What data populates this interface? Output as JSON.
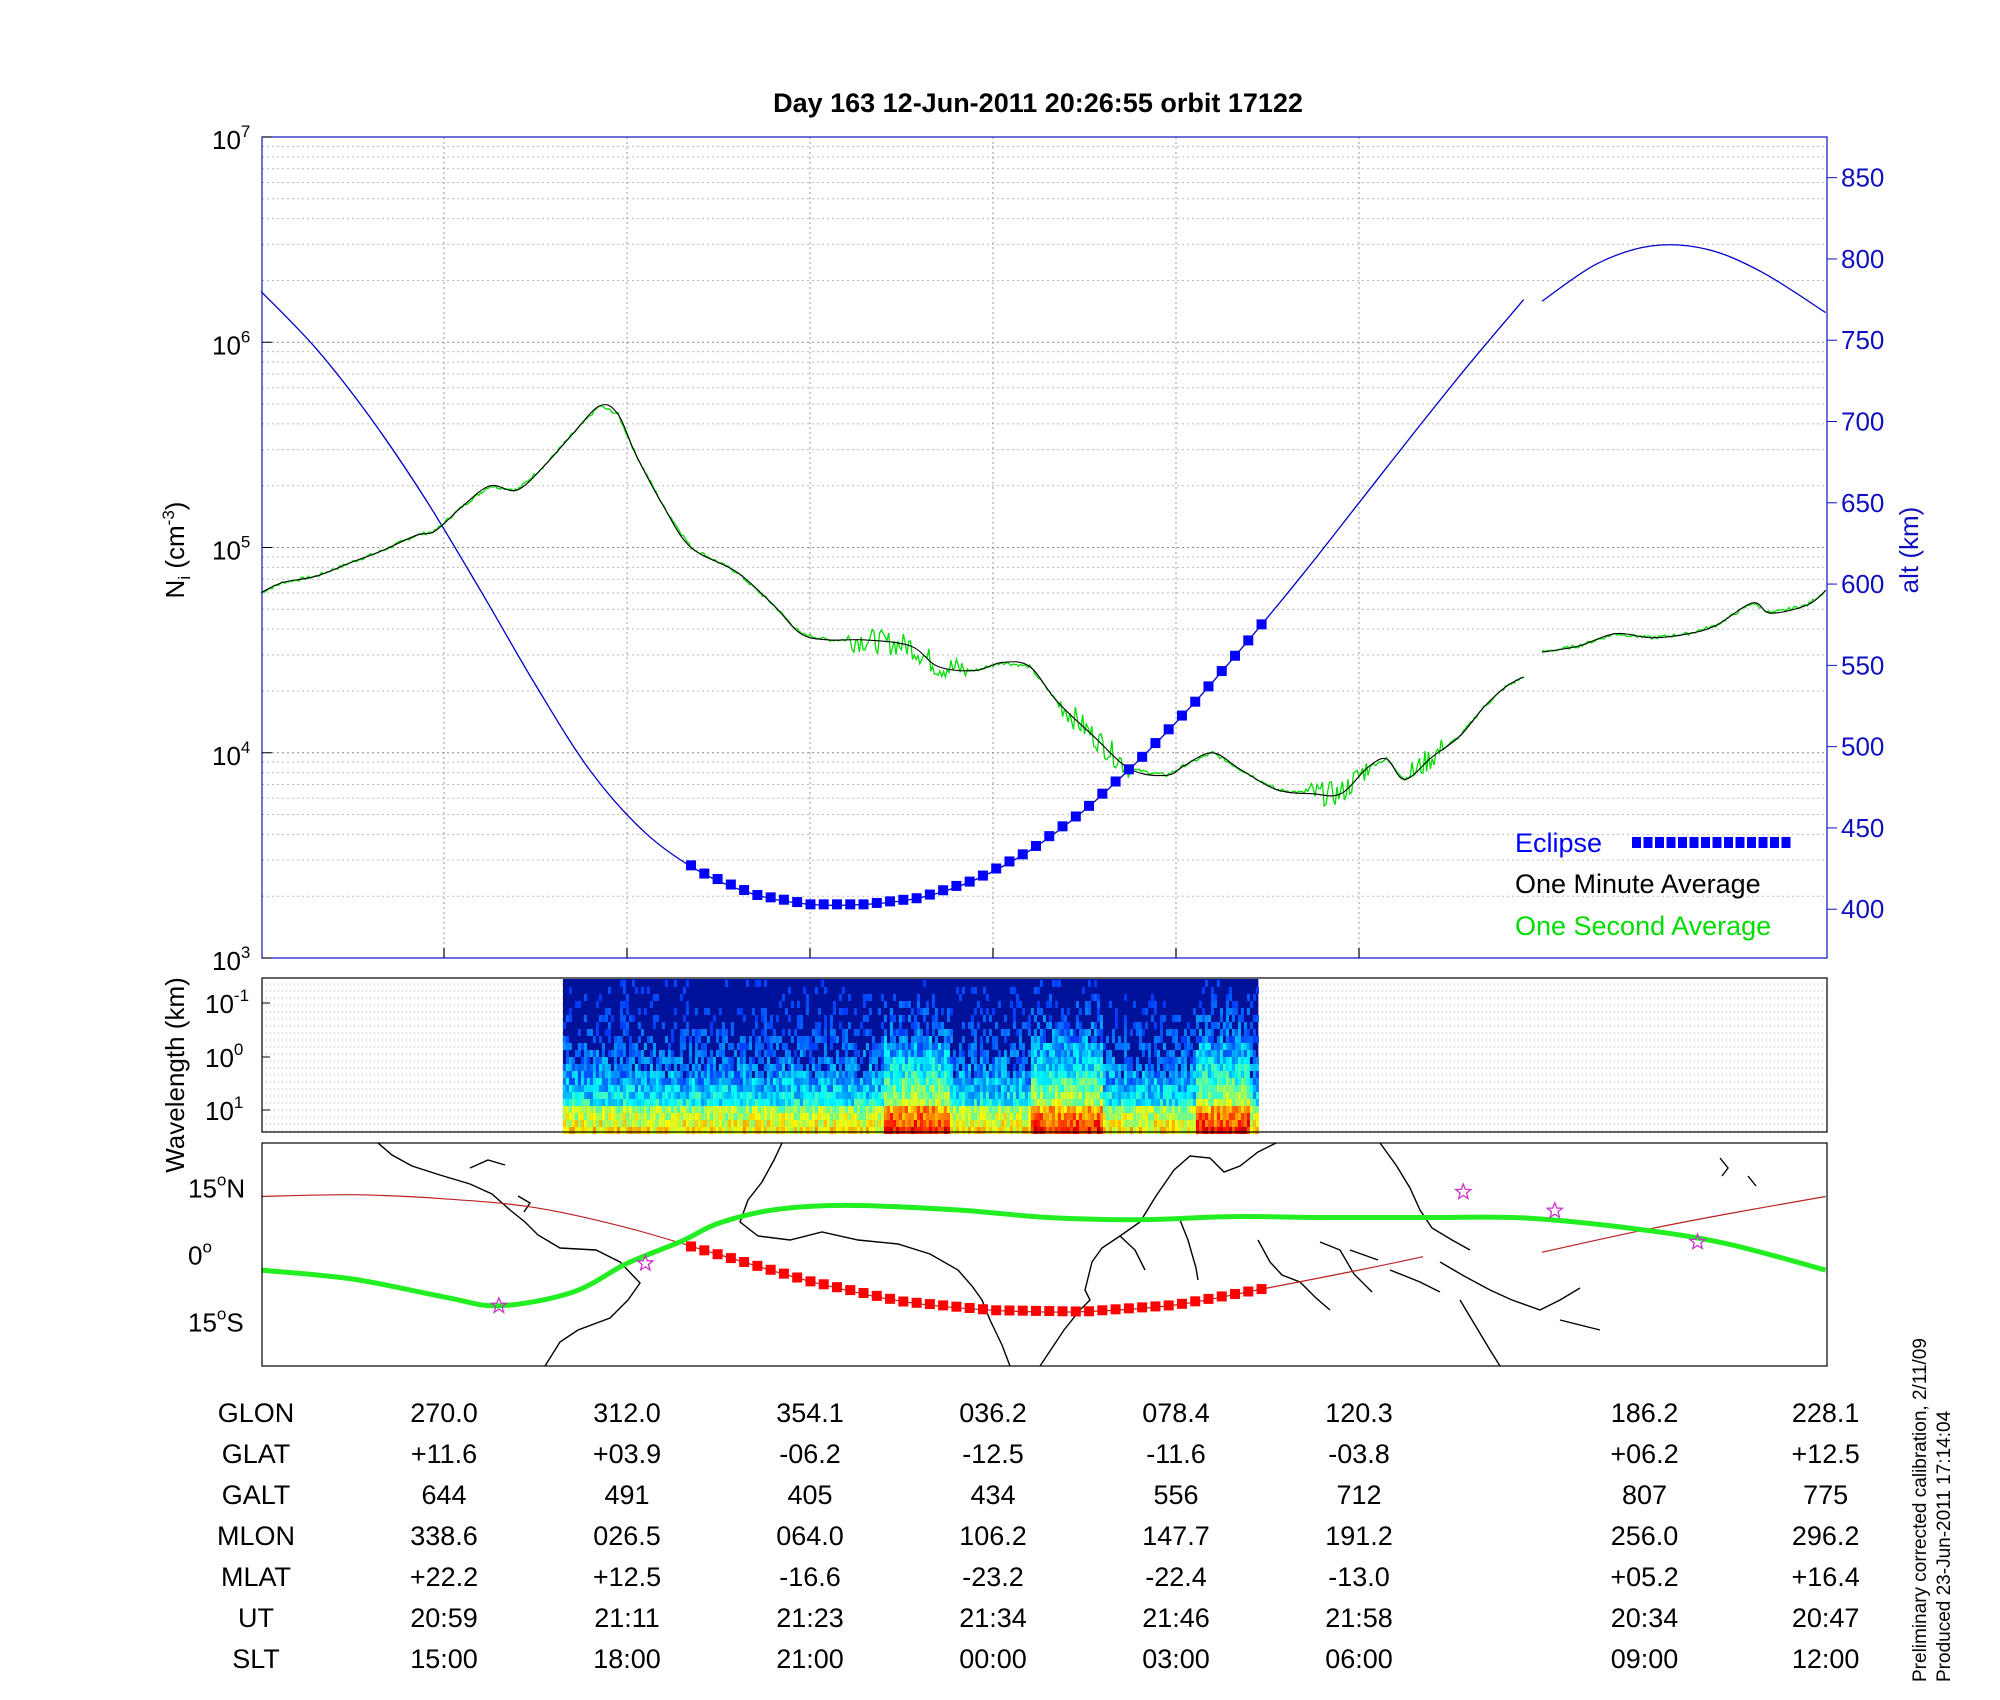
{
  "title": "Day 163  12-Jun-2011 20:26:55   orbit 17122",
  "colors": {
    "altitude": "#0000c8",
    "eclipse": "#0000ff",
    "minute_avg": "#000000",
    "second_avg": "#00dd00",
    "ground_track": "#bb2222",
    "magnetic_equator": "#22ee22",
    "eclipse_track": "#ff0000",
    "stars": "#cc33cc",
    "right_axis": "#1010c0"
  },
  "legend": {
    "eclipse": "Eclipse",
    "minute": "One Minute Average",
    "second": "One Second Average"
  },
  "table": {
    "labels": [
      "GLON",
      "GLAT",
      "GALT",
      "MLON",
      "MLAT",
      "UT",
      "SLT"
    ],
    "columns": [
      {
        "pos": 0,
        "GLON": "270.0",
        "GLAT": "+11.6",
        "GALT": "644",
        "MLON": "338.6",
        "MLAT": "+22.2",
        "UT": "20:59",
        "SLT": "15:00"
      },
      {
        "pos": 1,
        "GLON": "312.0",
        "GLAT": "+03.9",
        "GALT": "491",
        "MLON": "026.5",
        "MLAT": "+12.5",
        "UT": "21:11",
        "SLT": "18:00"
      },
      {
        "pos": 2,
        "GLON": "354.1",
        "GLAT": "-06.2",
        "GALT": "405",
        "MLON": "064.0",
        "MLAT": "-16.6",
        "UT": "21:23",
        "SLT": "21:00"
      },
      {
        "pos": 3,
        "GLON": "036.2",
        "GLAT": "-12.5",
        "GALT": "434",
        "MLON": "106.2",
        "MLAT": "-23.2",
        "UT": "21:34",
        "SLT": "00:00"
      },
      {
        "pos": 4,
        "GLON": "078.4",
        "GLAT": "-11.6",
        "GALT": "556",
        "MLON": "147.7",
        "MLAT": "-22.4",
        "UT": "21:46",
        "SLT": "03:00"
      },
      {
        "pos": 5,
        "GLON": "120.3",
        "GLAT": "-03.8",
        "GALT": "712",
        "MLON": "191.2",
        "MLAT": "-13.0",
        "UT": "21:58",
        "SLT": "06:00"
      },
      {
        "pos": 6.56,
        "GLON": "186.2",
        "GLAT": "+06.2",
        "GALT": "807",
        "MLON": "256.0",
        "MLAT": "+05.2",
        "UT": "20:34",
        "SLT": "09:00"
      },
      {
        "pos": 7.55,
        "GLON": "228.1",
        "GLAT": "+12.5",
        "GALT": "775",
        "MLON": "296.2",
        "MLAT": "+16.4",
        "UT": "20:47",
        "SLT": "12:00"
      }
    ]
  },
  "footer": {
    "line1": "Preliminary corrected calibration, 2/11/09",
    "line2": "Produced 23-Jun-2011 17:14:04"
  },
  "chart_data": [
    {
      "id": "density",
      "type": "line",
      "xlim": [
        -1,
        7.55
      ],
      "ylim_log10": [
        3,
        7
      ],
      "ylabel_main": "N",
      "ylabel_sub": "i",
      "ylabel_unit": " (cm",
      "ylabel_exp": "-3",
      "ylabel_close": ")",
      "y_ticks": [
        {
          "base": "10",
          "exp": "3",
          "v": 3
        },
        {
          "base": "10",
          "exp": "4",
          "v": 4
        },
        {
          "base": "10",
          "exp": "5",
          "v": 5
        },
        {
          "base": "10",
          "exp": "6",
          "v": 6
        },
        {
          "base": "10",
          "exp": "7",
          "v": 7
        }
      ],
      "right_axis": {
        "label": "alt (km)",
        "lim": [
          370,
          875
        ],
        "ticks": [
          "400",
          "450",
          "500",
          "550",
          "600",
          "650",
          "700",
          "750",
          "800",
          "850"
        ]
      },
      "series": [
        {
          "name": "One Minute Average",
          "log10": [
            [
              -1.0,
              4.78
            ],
            [
              -0.88,
              4.83
            ],
            [
              -0.7,
              4.86
            ],
            [
              -0.5,
              4.93
            ],
            [
              -0.35,
              4.98
            ],
            [
              -0.15,
              5.06
            ],
            [
              -0.05,
              5.08
            ],
            [
              0.1,
              5.2
            ],
            [
              0.25,
              5.3
            ],
            [
              0.4,
              5.28
            ],
            [
              0.55,
              5.4
            ],
            [
              0.7,
              5.55
            ],
            [
              0.85,
              5.69
            ],
            [
              0.95,
              5.65
            ],
            [
              1.05,
              5.45
            ],
            [
              1.2,
              5.2
            ],
            [
              1.35,
              5.0
            ],
            [
              1.6,
              4.88
            ],
            [
              1.8,
              4.72
            ],
            [
              1.95,
              4.58
            ],
            [
              2.1,
              4.55
            ],
            [
              2.3,
              4.55
            ],
            [
              2.55,
              4.52
            ],
            [
              2.7,
              4.42
            ],
            [
              2.9,
              4.4
            ],
            [
              3.05,
              4.44
            ],
            [
              3.2,
              4.42
            ],
            [
              3.35,
              4.25
            ],
            [
              3.55,
              4.08
            ],
            [
              3.75,
              3.92
            ],
            [
              3.95,
              3.89
            ],
            [
              4.05,
              3.94
            ],
            [
              4.2,
              4.0
            ],
            [
              4.35,
              3.92
            ],
            [
              4.55,
              3.82
            ],
            [
              4.75,
              3.8
            ],
            [
              4.9,
              3.8
            ],
            [
              5.05,
              3.93
            ],
            [
              5.15,
              3.97
            ],
            [
              5.25,
              3.87
            ],
            [
              5.4,
              3.98
            ],
            [
              5.55,
              4.08
            ],
            [
              5.68,
              4.22
            ],
            [
              5.8,
              4.32
            ],
            [
              5.9,
              4.37
            ]
          ],
          "log10_b": [
            [
              6.0,
              4.49
            ],
            [
              6.2,
              4.52
            ],
            [
              6.4,
              4.58
            ],
            [
              6.6,
              4.56
            ],
            [
              6.8,
              4.58
            ],
            [
              6.95,
              4.62
            ],
            [
              7.15,
              4.73
            ],
            [
              7.25,
              4.68
            ],
            [
              7.45,
              4.72
            ],
            [
              7.55,
              4.79
            ]
          ]
        },
        {
          "name": "One Second Average",
          "noise_ranges": [
            [
              2.2,
              2.85
            ],
            [
              3.35,
              3.75
            ],
            [
              4.7,
              5.05
            ],
            [
              5.28,
              5.45
            ]
          ]
        },
        {
          "name": "Altitude",
          "alt_km_a": [
            [
              -1.0,
              780
            ],
            [
              -0.7,
              745
            ],
            [
              -0.4,
              702
            ],
            [
              -0.1,
              652
            ],
            [
              0.2,
              596
            ],
            [
              0.5,
              538
            ],
            [
              0.8,
              485
            ],
            [
              1.1,
              447
            ],
            [
              1.4,
              423
            ],
            [
              1.7,
              409
            ],
            [
              2.0,
              403
            ],
            [
              2.3,
              403
            ],
            [
              2.6,
              407
            ],
            [
              2.9,
              418
            ],
            [
              3.2,
              436
            ],
            [
              3.5,
              461
            ],
            [
              3.8,
              492
            ],
            [
              4.1,
              527
            ],
            [
              4.4,
              566
            ],
            [
              4.7,
              607
            ],
            [
              5.0,
              650
            ],
            [
              5.3,
              693
            ],
            [
              5.6,
              735
            ],
            [
              5.9,
              775
            ]
          ],
          "alt_km_b": [
            [
              6.0,
              774
            ],
            [
              6.3,
              797
            ],
            [
              6.6,
              808
            ],
            [
              6.9,
              806
            ],
            [
              7.2,
              792
            ],
            [
              7.55,
              767
            ]
          ]
        },
        {
          "name": "Eclipse",
          "x_range": [
            1.35,
            4.5
          ]
        }
      ]
    },
    {
      "id": "spectrogram",
      "type": "heatmap",
      "ylabel": "Wavelength (km)",
      "y_ticks": [
        {
          "base": "10",
          "exp": "-1"
        },
        {
          "base": "10",
          "exp": "0"
        },
        {
          "base": "10",
          "exp": "1"
        }
      ],
      "x_range": [
        0.65,
        4.45
      ],
      "intense_regions": [
        [
          2.4,
          2.75
        ],
        [
          3.2,
          3.6
        ],
        [
          4.1,
          4.4
        ]
      ]
    },
    {
      "id": "map",
      "type": "line",
      "ylim": [
        -25,
        25
      ],
      "y_ticks": [
        {
          "v": 15,
          "deg": "15",
          "ns": "N"
        },
        {
          "v": 0,
          "deg": "0",
          "ns": ""
        },
        {
          "v": -15,
          "deg": "15",
          "ns": "S"
        }
      ],
      "ground_track_a": [
        [
          -1.0,
          13
        ],
        [
          -0.5,
          13.4
        ],
        [
          0.0,
          12.5
        ],
        [
          0.5,
          10.5
        ],
        [
          1.0,
          6
        ],
        [
          1.5,
          0
        ],
        [
          2.0,
          -6
        ],
        [
          2.5,
          -10.5
        ],
        [
          3.0,
          -12.5
        ],
        [
          3.5,
          -12.8
        ],
        [
          4.0,
          -11.3
        ],
        [
          4.5,
          -7.5
        ],
        [
          5.0,
          -3.5
        ],
        [
          5.35,
          -0.5
        ]
      ],
      "ground_track_b": [
        [
          6.0,
          0.5
        ],
        [
          6.5,
          5
        ],
        [
          7.0,
          9
        ],
        [
          7.55,
          13
        ]
      ],
      "magnetic_equator": [
        [
          -1.0,
          -3.5
        ],
        [
          -0.5,
          -5.5
        ],
        [
          0.0,
          -9.5
        ],
        [
          0.3,
          -11.5
        ],
        [
          0.7,
          -8.5
        ],
        [
          1.0,
          -2
        ],
        [
          1.3,
          3
        ],
        [
          1.5,
          7
        ],
        [
          1.8,
          10
        ],
        [
          2.2,
          11
        ],
        [
          2.8,
          10
        ],
        [
          3.3,
          8.3
        ],
        [
          3.8,
          7.8
        ],
        [
          4.3,
          8.5
        ],
        [
          4.8,
          8.3
        ],
        [
          5.4,
          8.3
        ],
        [
          5.9,
          8.2
        ],
        [
          6.5,
          5.8
        ],
        [
          7.0,
          2.5
        ],
        [
          7.55,
          -3.5
        ]
      ],
      "eclipse_x_range": [
        1.35,
        4.5
      ],
      "stars": [
        [
          0.3,
          -11.5
        ],
        [
          1.1,
          -2
        ],
        [
          5.57,
          14
        ],
        [
          6.07,
          9.8
        ],
        [
          6.85,
          2.8
        ]
      ]
    }
  ]
}
